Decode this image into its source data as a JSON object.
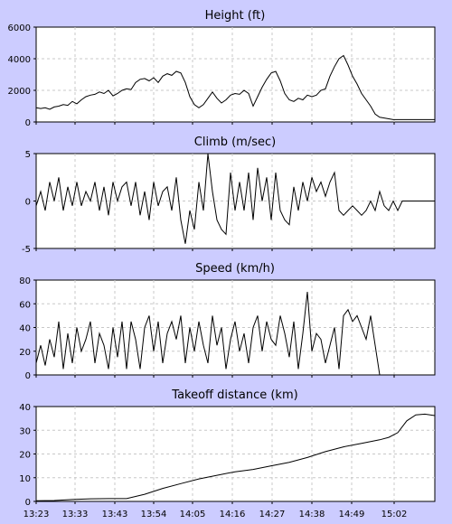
{
  "x_tick_labels": [
    "13:23",
    "13:33",
    "13:43",
    "13:54",
    "14:05",
    "14:16",
    "14:27",
    "14:38",
    "14:49",
    "15:02"
  ],
  "chart_data": [
    {
      "type": "line",
      "title": "Height (ft)",
      "ylim": [
        0,
        6000
      ],
      "yticks": [
        "0",
        "2000",
        "4000",
        "6000"
      ],
      "grid": true,
      "legend": "none",
      "x": [
        0,
        5,
        10,
        15,
        20,
        25,
        30,
        35,
        40,
        45,
        50,
        55,
        60,
        65,
        70,
        75,
        80,
        85,
        90,
        95,
        100,
        105,
        110,
        115,
        120,
        125,
        130,
        135,
        140,
        145,
        150,
        155,
        160,
        165,
        170,
        175,
        180,
        185,
        190,
        195,
        200,
        205,
        210,
        215,
        220,
        225,
        230,
        235,
        240,
        245,
        250,
        255,
        260,
        265,
        270,
        275,
        280,
        285,
        290,
        295,
        300,
        305,
        310,
        315,
        320,
        325,
        330,
        335,
        340,
        345,
        350,
        355,
        360,
        365,
        370,
        375,
        380,
        385,
        390,
        395,
        400,
        405,
        410,
        415,
        420,
        425,
        430,
        435,
        440,
        441
      ],
      "values": [
        900,
        850,
        900,
        800,
        950,
        1000,
        1100,
        1050,
        1300,
        1150,
        1400,
        1600,
        1700,
        1750,
        1900,
        1800,
        2000,
        1650,
        1800,
        2000,
        2100,
        2050,
        2500,
        2700,
        2750,
        2600,
        2800,
        2500,
        2900,
        3050,
        2950,
        3200,
        3100,
        2500,
        1600,
        1100,
        900,
        1100,
        1500,
        1900,
        1500,
        1200,
        1400,
        1700,
        1800,
        1750,
        2000,
        1800,
        1000,
        1600,
        2200,
        2700,
        3100,
        3200,
        2600,
        1800,
        1400,
        1300,
        1500,
        1400,
        1700,
        1600,
        1700,
        2000,
        2100,
        2900,
        3500,
        4000,
        4200,
        3600,
        2900,
        2400,
        1800,
        1400,
        1000,
        500,
        300,
        250,
        200,
        150,
        150,
        150,
        150,
        150,
        150,
        150,
        150,
        150,
        150,
        150
      ]
    },
    {
      "type": "line",
      "title": "Climb (m/sec)",
      "ylim": [
        -5,
        5
      ],
      "yticks": [
        "-5",
        "0",
        "5"
      ],
      "grid": true,
      "legend": "none",
      "x": [
        0,
        5,
        10,
        15,
        20,
        25,
        30,
        35,
        40,
        45,
        50,
        55,
        60,
        65,
        70,
        75,
        80,
        85,
        90,
        95,
        100,
        105,
        110,
        115,
        120,
        125,
        130,
        135,
        140,
        145,
        150,
        155,
        160,
        165,
        170,
        175,
        180,
        185,
        190,
        195,
        200,
        205,
        210,
        215,
        220,
        225,
        230,
        235,
        240,
        245,
        250,
        255,
        260,
        265,
        270,
        275,
        280,
        285,
        290,
        295,
        300,
        305,
        310,
        315,
        320,
        325,
        330,
        335,
        340,
        345,
        350,
        355,
        360,
        365,
        370,
        375,
        380,
        385,
        390,
        395,
        400,
        405,
        410,
        415,
        420,
        425,
        430,
        435,
        440,
        441
      ],
      "values": [
        -0.5,
        1,
        -1,
        2,
        0,
        2.5,
        -1,
        1.5,
        -0.5,
        2,
        -0.5,
        1,
        0,
        2,
        -1,
        1.5,
        -1.5,
        2,
        0,
        1.5,
        2,
        -0.5,
        2,
        -1.5,
        1,
        -2,
        2,
        -0.5,
        1,
        1.5,
        -1,
        2.5,
        -2,
        -4.5,
        -1,
        -3,
        2,
        -1,
        5,
        1,
        -2,
        -3,
        -3.5,
        3,
        -1,
        2,
        -1,
        3,
        -2,
        3.5,
        0,
        2.5,
        -2,
        3,
        -1,
        -2,
        -2.5,
        1.5,
        -1,
        2,
        0,
        2.5,
        1,
        2,
        0.5,
        2,
        3,
        -1,
        -1.5,
        -1,
        -0.5,
        -1,
        -1.5,
        -1,
        0,
        -1,
        1,
        -0.5,
        -1,
        0,
        -1,
        0,
        0,
        0,
        0,
        0,
        0,
        0,
        0,
        0
      ]
    },
    {
      "type": "line",
      "title": "Speed (km/h)",
      "ylim": [
        0,
        80
      ],
      "yticks": [
        "0",
        "20",
        "40",
        "60",
        "80"
      ],
      "grid": true,
      "legend": "none",
      "x": [
        0,
        5,
        10,
        15,
        20,
        25,
        30,
        35,
        40,
        45,
        50,
        55,
        60,
        65,
        70,
        75,
        80,
        85,
        90,
        95,
        100,
        105,
        110,
        115,
        120,
        125,
        130,
        135,
        140,
        145,
        150,
        155,
        160,
        165,
        170,
        175,
        180,
        185,
        190,
        195,
        200,
        205,
        210,
        215,
        220,
        225,
        230,
        235,
        240,
        245,
        250,
        255,
        260,
        265,
        270,
        275,
        280,
        285,
        290,
        295,
        300,
        305,
        310,
        315,
        320,
        325,
        330,
        335,
        340,
        345,
        350,
        355,
        360,
        365,
        370,
        375,
        380,
        385,
        390,
        395,
        400,
        405,
        410,
        415,
        420,
        425,
        430,
        435,
        440,
        441
      ],
      "values": [
        10,
        25,
        8,
        30,
        15,
        45,
        5,
        35,
        10,
        40,
        20,
        30,
        45,
        10,
        35,
        25,
        5,
        40,
        15,
        45,
        5,
        45,
        30,
        5,
        40,
        50,
        20,
        45,
        10,
        35,
        45,
        30,
        50,
        10,
        40,
        20,
        45,
        25,
        10,
        50,
        25,
        40,
        5,
        30,
        45,
        20,
        35,
        10,
        40,
        50,
        20,
        45,
        30,
        25,
        50,
        35,
        15,
        45,
        5,
        35,
        70,
        20,
        35,
        30,
        10,
        25,
        40,
        5,
        50,
        55,
        45,
        50,
        40,
        30,
        50,
        25,
        0,
        0,
        0,
        0,
        0,
        0,
        0,
        0,
        0,
        0,
        0,
        0,
        0,
        0
      ]
    },
    {
      "type": "line",
      "title": "Takeoff distance (km)",
      "ylim": [
        0,
        40
      ],
      "yticks": [
        "0",
        "10",
        "20",
        "30",
        "40"
      ],
      "grid": true,
      "legend": "none",
      "x": [
        0,
        20,
        40,
        60,
        80,
        100,
        120,
        140,
        160,
        180,
        200,
        220,
        240,
        260,
        280,
        300,
        320,
        340,
        360,
        380,
        390,
        400,
        410,
        420,
        430,
        441
      ],
      "values": [
        0.3,
        0.4,
        0.8,
        1.1,
        1.2,
        1.2,
        3,
        5.5,
        7.5,
        9.5,
        11,
        12.5,
        13.5,
        15,
        16.5,
        18.5,
        21,
        23,
        24.5,
        26,
        27,
        29,
        34,
        36.5,
        36.8,
        36.2
      ]
    }
  ]
}
